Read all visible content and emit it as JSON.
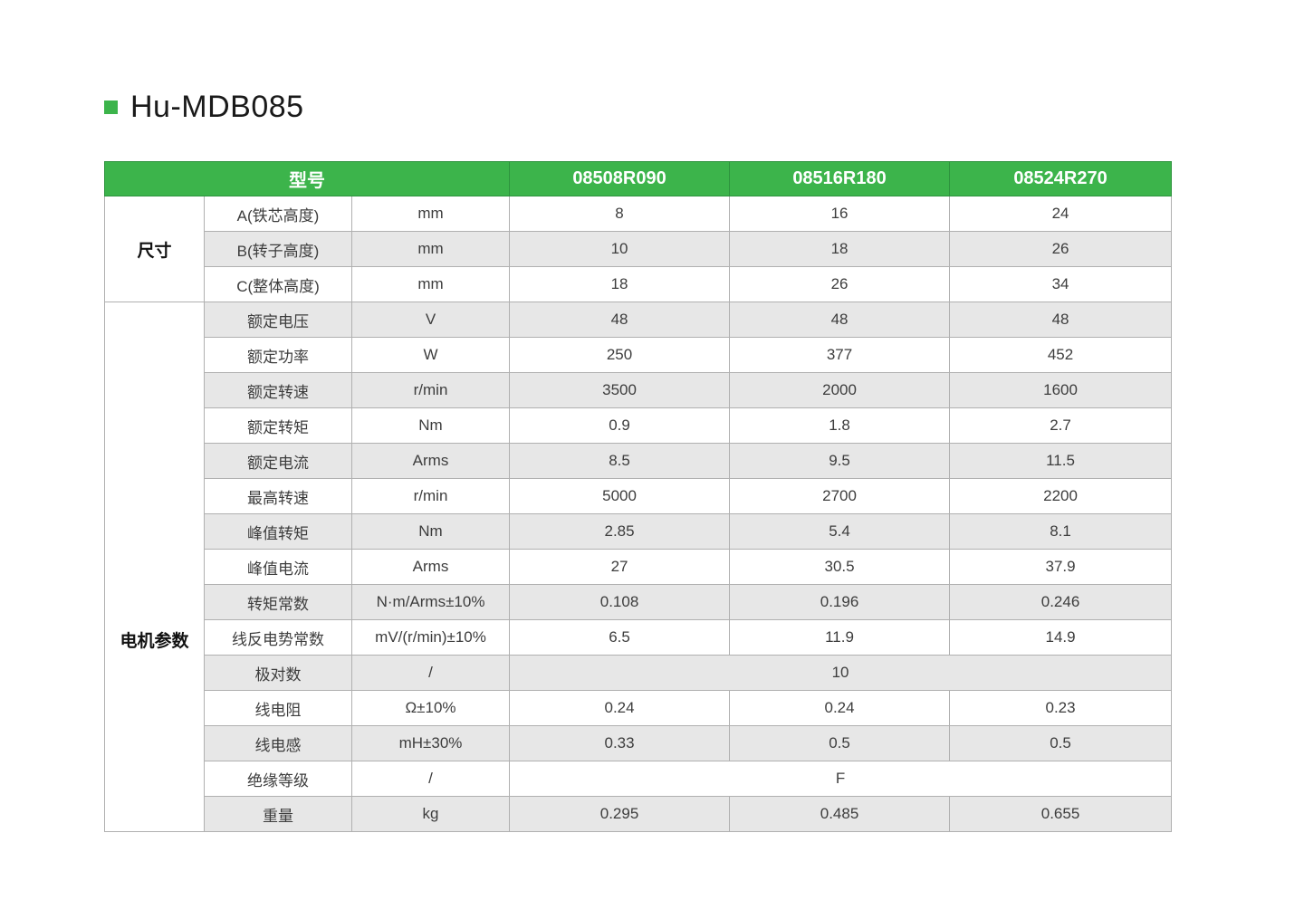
{
  "page": {
    "title": "Hu-MDB085",
    "accent_green": "#3cb44b",
    "header_border_green": "#2e933e",
    "stripe_gray": "#e7e7e7"
  },
  "table": {
    "header": {
      "model_col_label": "型号",
      "models": [
        "08508R090",
        "08516R180",
        "08524R270"
      ]
    },
    "groups": [
      {
        "label": "尺寸",
        "rows": [
          {
            "name": "A(铁芯高度)",
            "unit": "mm",
            "values": [
              "8",
              "16",
              "24"
            ]
          },
          {
            "name": "B(转子高度)",
            "unit": "mm",
            "values": [
              "10",
              "18",
              "26"
            ]
          },
          {
            "name": "C(整体高度)",
            "unit": "mm",
            "values": [
              "18",
              "26",
              "34"
            ]
          }
        ]
      },
      {
        "label": "电机参数",
        "rows": [
          {
            "name": "额定电压",
            "unit": "V",
            "values": [
              "48",
              "48",
              "48"
            ]
          },
          {
            "name": "额定功率",
            "unit": "W",
            "values": [
              "250",
              "377",
              "452"
            ]
          },
          {
            "name": "额定转速",
            "unit": "r/min",
            "values": [
              "3500",
              "2000",
              "1600"
            ]
          },
          {
            "name": "额定转矩",
            "unit": "Nm",
            "values": [
              "0.9",
              "1.8",
              "2.7"
            ]
          },
          {
            "name": "额定电流",
            "unit": "Arms",
            "values": [
              "8.5",
              "9.5",
              "11.5"
            ]
          },
          {
            "name": "最高转速",
            "unit": "r/min",
            "values": [
              "5000",
              "2700",
              "2200"
            ]
          },
          {
            "name": "峰值转矩",
            "unit": "Nm",
            "values": [
              "2.85",
              "5.4",
              "8.1"
            ]
          },
          {
            "name": "峰值电流",
            "unit": "Arms",
            "values": [
              "27",
              "30.5",
              "37.9"
            ]
          },
          {
            "name": "转矩常数",
            "unit": "N·m/Arms±10%",
            "values": [
              "0.108",
              "0.196",
              "0.246"
            ]
          },
          {
            "name": "线反电势常数",
            "unit": "mV/(r/min)±10%",
            "values": [
              "6.5",
              "11.9",
              "14.9"
            ]
          },
          {
            "name": "极对数",
            "unit": "/",
            "merged_value": "10"
          },
          {
            "name": "线电阻",
            "unit": "Ω±10%",
            "values": [
              "0.24",
              "0.24",
              "0.23"
            ]
          },
          {
            "name": "线电感",
            "unit": "mH±30%",
            "values": [
              "0.33",
              "0.5",
              "0.5"
            ]
          },
          {
            "name": "绝缘等级",
            "unit": "/",
            "merged_value": "F"
          },
          {
            "name": "重量",
            "unit": "kg",
            "values": [
              "0.295",
              "0.485",
              "0.655"
            ]
          }
        ]
      }
    ]
  }
}
